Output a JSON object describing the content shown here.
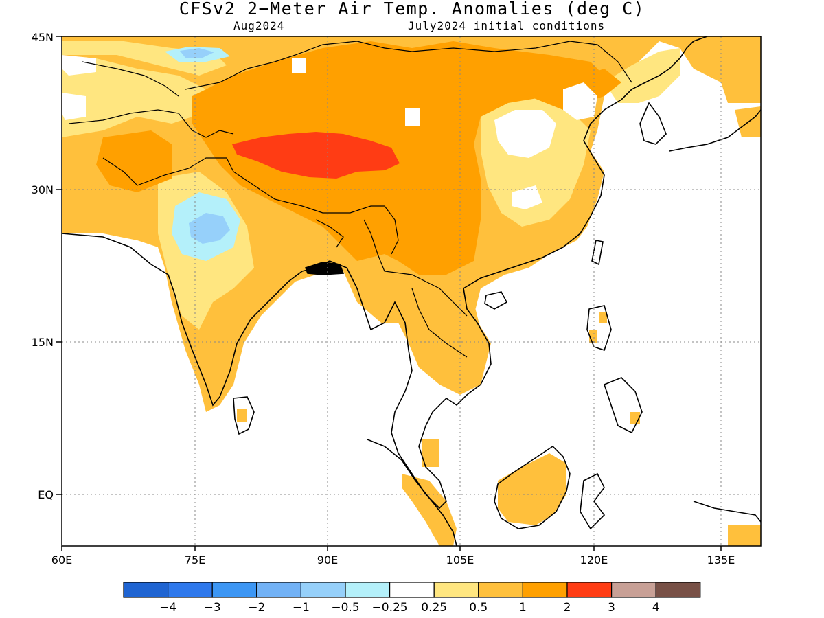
{
  "title": "CFSv2 2−Meter Air Temp. Anomalies (deg C)",
  "valid_month": "Aug2024",
  "init_conditions": "July2024 initial conditions",
  "lon_ticks": [
    "60E",
    "75E",
    "90E",
    "105E",
    "120E",
    "135E"
  ],
  "lat_ticks": [
    "45N",
    "30N",
    "15N",
    "EQ"
  ],
  "colorbar": {
    "colors": [
      "#1f64d2",
      "#2e78ec",
      "#3c96f4",
      "#72b2f6",
      "#96d0fa",
      "#b4f0fa",
      "#ffffff",
      "#ffe680",
      "#ffc03c",
      "#ffa000",
      "#ff3c14",
      "#c8a096",
      "#785046"
    ],
    "labels": [
      "−4",
      "−3",
      "−2",
      "−1",
      "−0.5",
      "−0.25",
      "0.25",
      "0.5",
      "1",
      "2",
      "3",
      "4"
    ]
  }
}
